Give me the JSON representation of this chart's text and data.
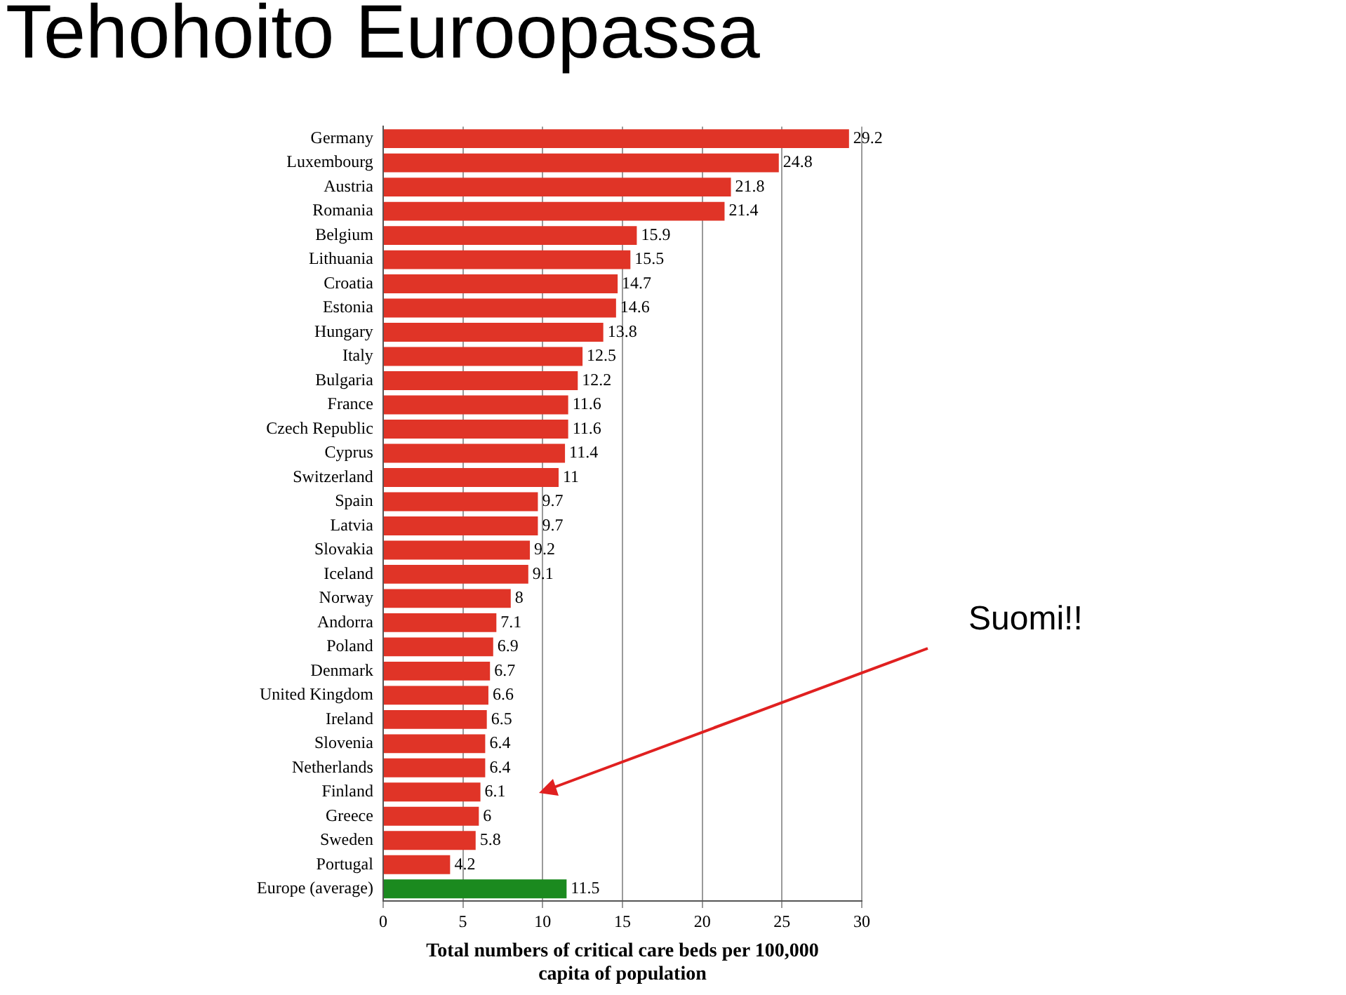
{
  "chart_data": {
    "type": "bar",
    "orientation": "horizontal",
    "title": "Tehohoito Euroopassa",
    "xlabel": "Total numbers of critical care beds per 100,000 capita of population",
    "categories": [
      "Germany",
      "Luxembourg",
      "Austria",
      "Romania",
      "Belgium",
      "Lithuania",
      "Croatia",
      "Estonia",
      "Hungary",
      "Italy",
      "Bulgaria",
      "France",
      "Czech Republic",
      "Cyprus",
      "Switzerland",
      "Spain",
      "Latvia",
      "Slovakia",
      "Iceland",
      "Norway",
      "Andorra",
      "Poland",
      "Denmark",
      "United Kingdom",
      "Ireland",
      "Slovenia",
      "Netherlands",
      "Finland",
      "Greece",
      "Sweden",
      "Portugal",
      "Europe (average)"
    ],
    "values": [
      29.2,
      24.8,
      21.8,
      21.4,
      15.9,
      15.5,
      14.7,
      14.6,
      13.8,
      12.5,
      12.2,
      11.6,
      11.6,
      11.4,
      11,
      9.7,
      9.7,
      9.2,
      9.1,
      8,
      7.1,
      6.9,
      6.7,
      6.6,
      6.5,
      6.4,
      6.4,
      6.1,
      6,
      5.8,
      4.2,
      11.5
    ],
    "colors": [
      "#e03427",
      "#e03427",
      "#e03427",
      "#e03427",
      "#e03427",
      "#e03427",
      "#e03427",
      "#e03427",
      "#e03427",
      "#e03427",
      "#e03427",
      "#e03427",
      "#e03427",
      "#e03427",
      "#e03427",
      "#e03427",
      "#e03427",
      "#e03427",
      "#e03427",
      "#e03427",
      "#e03427",
      "#e03427",
      "#e03427",
      "#e03427",
      "#e03427",
      "#e03427",
      "#e03427",
      "#e03427",
      "#e03427",
      "#e03427",
      "#e03427",
      "#1b8a1f"
    ],
    "xlim": [
      0,
      30
    ],
    "xticks": [
      0,
      5,
      10,
      15,
      20,
      25,
      30
    ],
    "grid": "x",
    "data_labels": true,
    "legend": false,
    "annotations": [
      "Suomi!!"
    ]
  }
}
